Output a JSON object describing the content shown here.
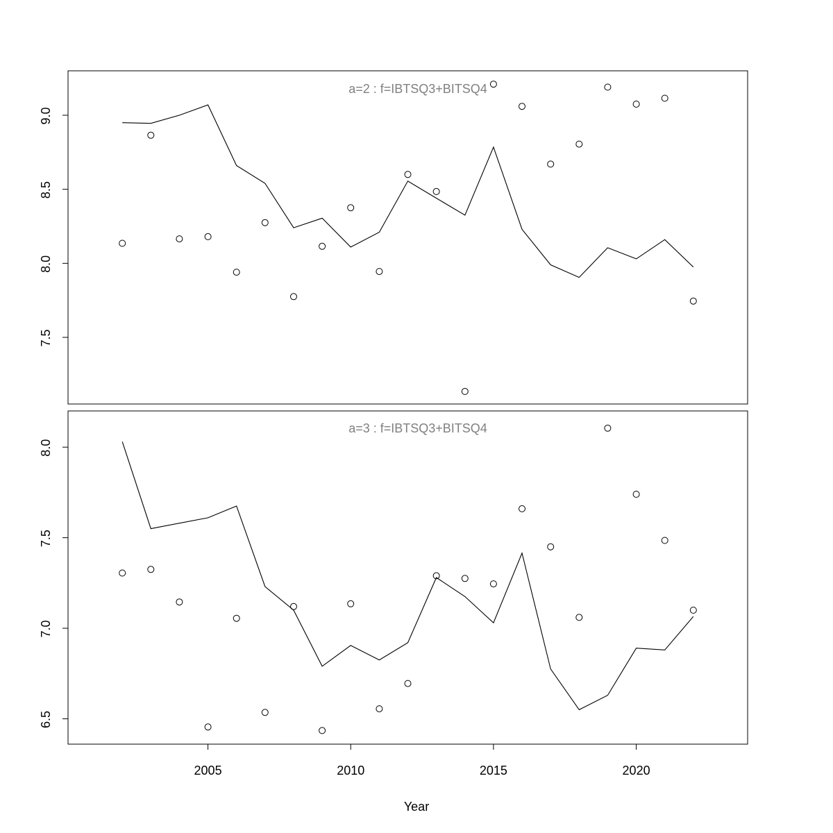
{
  "chart_data": {
    "type": "line",
    "xlabel": "Year",
    "x_ticks": [
      2005,
      2010,
      2015,
      2020
    ],
    "xlim": [
      2000.1,
      2023.9
    ],
    "panels": [
      {
        "title": "a=2  :  f=IBTSQ3+BITSQ4",
        "ylim": [
          7.05,
          9.3
        ],
        "y_ticks": [
          "7.5",
          "8.0",
          "8.5",
          "9.0"
        ],
        "x": [
          2002,
          2003,
          2004,
          2005,
          2006,
          2007,
          2008,
          2009,
          2010,
          2011,
          2012,
          2013,
          2014,
          2015,
          2016,
          2017,
          2018,
          2019,
          2020,
          2021,
          2022
        ],
        "series": [
          {
            "kind": "line",
            "values": [
              8.95,
              8.945,
              9.0,
              9.07,
              8.66,
              8.54,
              8.24,
              8.305,
              8.11,
              8.21,
              8.555,
              8.44,
              8.325,
              8.785,
              8.23,
              7.99,
              7.905,
              8.105,
              8.03,
              8.16,
              7.975
            ]
          },
          {
            "kind": "points",
            "values": [
              8.135,
              8.865,
              8.165,
              8.18,
              7.94,
              8.275,
              7.775,
              8.115,
              8.375,
              7.945,
              8.6,
              8.485,
              7.135,
              9.21,
              9.06,
              8.67,
              8.805,
              9.19,
              9.075,
              9.115,
              7.745
            ]
          }
        ]
      },
      {
        "title": "a=3  :  f=IBTSQ3+BITSQ4",
        "ylim": [
          6.36,
          8.2
        ],
        "y_ticks": [
          "6.5",
          "7.0",
          "7.5",
          "8.0"
        ],
        "x": [
          2002,
          2003,
          2004,
          2005,
          2006,
          2007,
          2008,
          2009,
          2010,
          2011,
          2012,
          2013,
          2014,
          2015,
          2016,
          2017,
          2018,
          2019,
          2020,
          2021,
          2022
        ],
        "series": [
          {
            "kind": "line",
            "values": [
              8.03,
              7.55,
              7.58,
              7.61,
              7.675,
              7.23,
              7.1,
              6.79,
              6.905,
              6.825,
              6.92,
              7.28,
              7.175,
              7.03,
              7.415,
              6.775,
              6.55,
              6.63,
              6.89,
              6.88,
              7.065
            ]
          },
          {
            "kind": "points",
            "values": [
              7.305,
              7.325,
              7.145,
              6.455,
              7.055,
              6.535,
              7.12,
              6.435,
              7.135,
              6.555,
              6.695,
              7.29,
              7.275,
              7.245,
              7.66,
              7.45,
              7.06,
              8.105,
              7.74,
              7.485,
              7.1
            ]
          }
        ]
      }
    ]
  }
}
